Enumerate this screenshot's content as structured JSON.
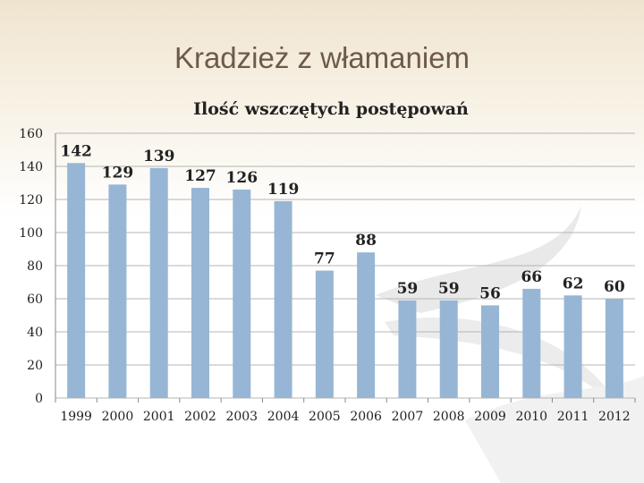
{
  "slide": {
    "title": "Kradzież z włamaniem"
  },
  "chart_data": {
    "type": "bar",
    "title": "Ilość wszczętych postępowań",
    "categories": [
      "1999",
      "2000",
      "2001",
      "2002",
      "2003",
      "2004",
      "2005",
      "2006",
      "2007",
      "2008",
      "2009",
      "2010",
      "2011",
      "2012"
    ],
    "values": [
      142,
      129,
      139,
      127,
      126,
      119,
      77,
      88,
      59,
      59,
      56,
      66,
      62,
      60
    ],
    "ylim": [
      0,
      160
    ],
    "yticks": [
      0,
      20,
      40,
      60,
      80,
      100,
      120,
      140,
      160
    ],
    "grid": true,
    "legend": "none",
    "bar_color": "#97b6d5",
    "grid_color": "#b5b5b5"
  }
}
